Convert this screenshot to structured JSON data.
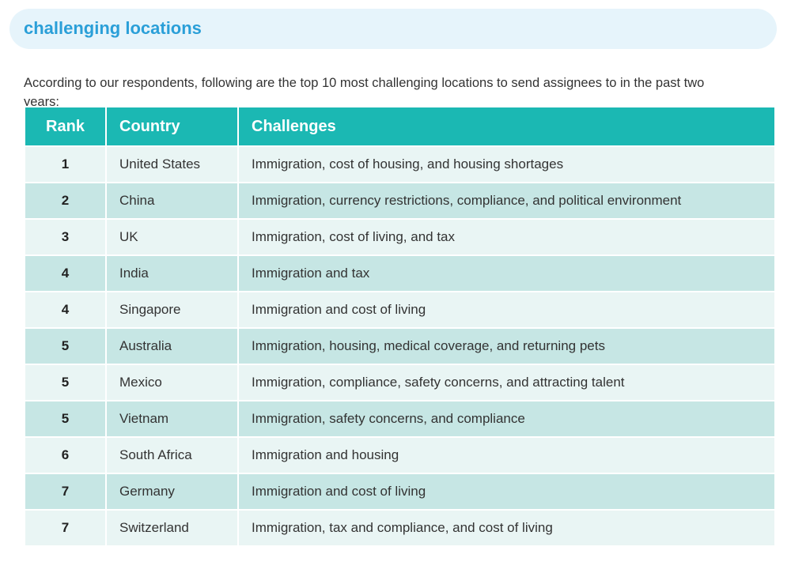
{
  "title": "challenging locations",
  "intro": "According to our respondents, following are the top 10 most challenging locations to send assignees to in the past two years:",
  "table": {
    "headers": [
      "Rank",
      "Country",
      "Challenges"
    ],
    "rows": [
      [
        "1",
        "United States",
        "Immigration, cost of housing, and housing shortages"
      ],
      [
        "2",
        "China",
        "Immigration, currency restrictions, compliance, and political environment"
      ],
      [
        "3",
        "UK",
        "Immigration, cost of living, and tax"
      ],
      [
        "4",
        "India",
        "Immigration and tax"
      ],
      [
        "4",
        "Singapore",
        "Immigration and cost of living"
      ],
      [
        "5",
        "Australia",
        "Immigration, housing, medical coverage, and returning pets"
      ],
      [
        "5",
        "Mexico",
        "Immigration, compliance, safety concerns, and attracting talent"
      ],
      [
        "5",
        "Vietnam",
        "Immigration, safety concerns, and compliance"
      ],
      [
        "6",
        "South Africa",
        "Immigration and housing"
      ],
      [
        "7",
        "Germany",
        "Immigration and cost of living"
      ],
      [
        "7",
        "Switzerland",
        "Immigration, tax and compliance, and cost of living"
      ]
    ]
  },
  "colors": {
    "header": "#1bb8b3",
    "title": "#2a9fd8",
    "row_light": "#e9f5f4",
    "row_dark": "#c6e6e4"
  }
}
